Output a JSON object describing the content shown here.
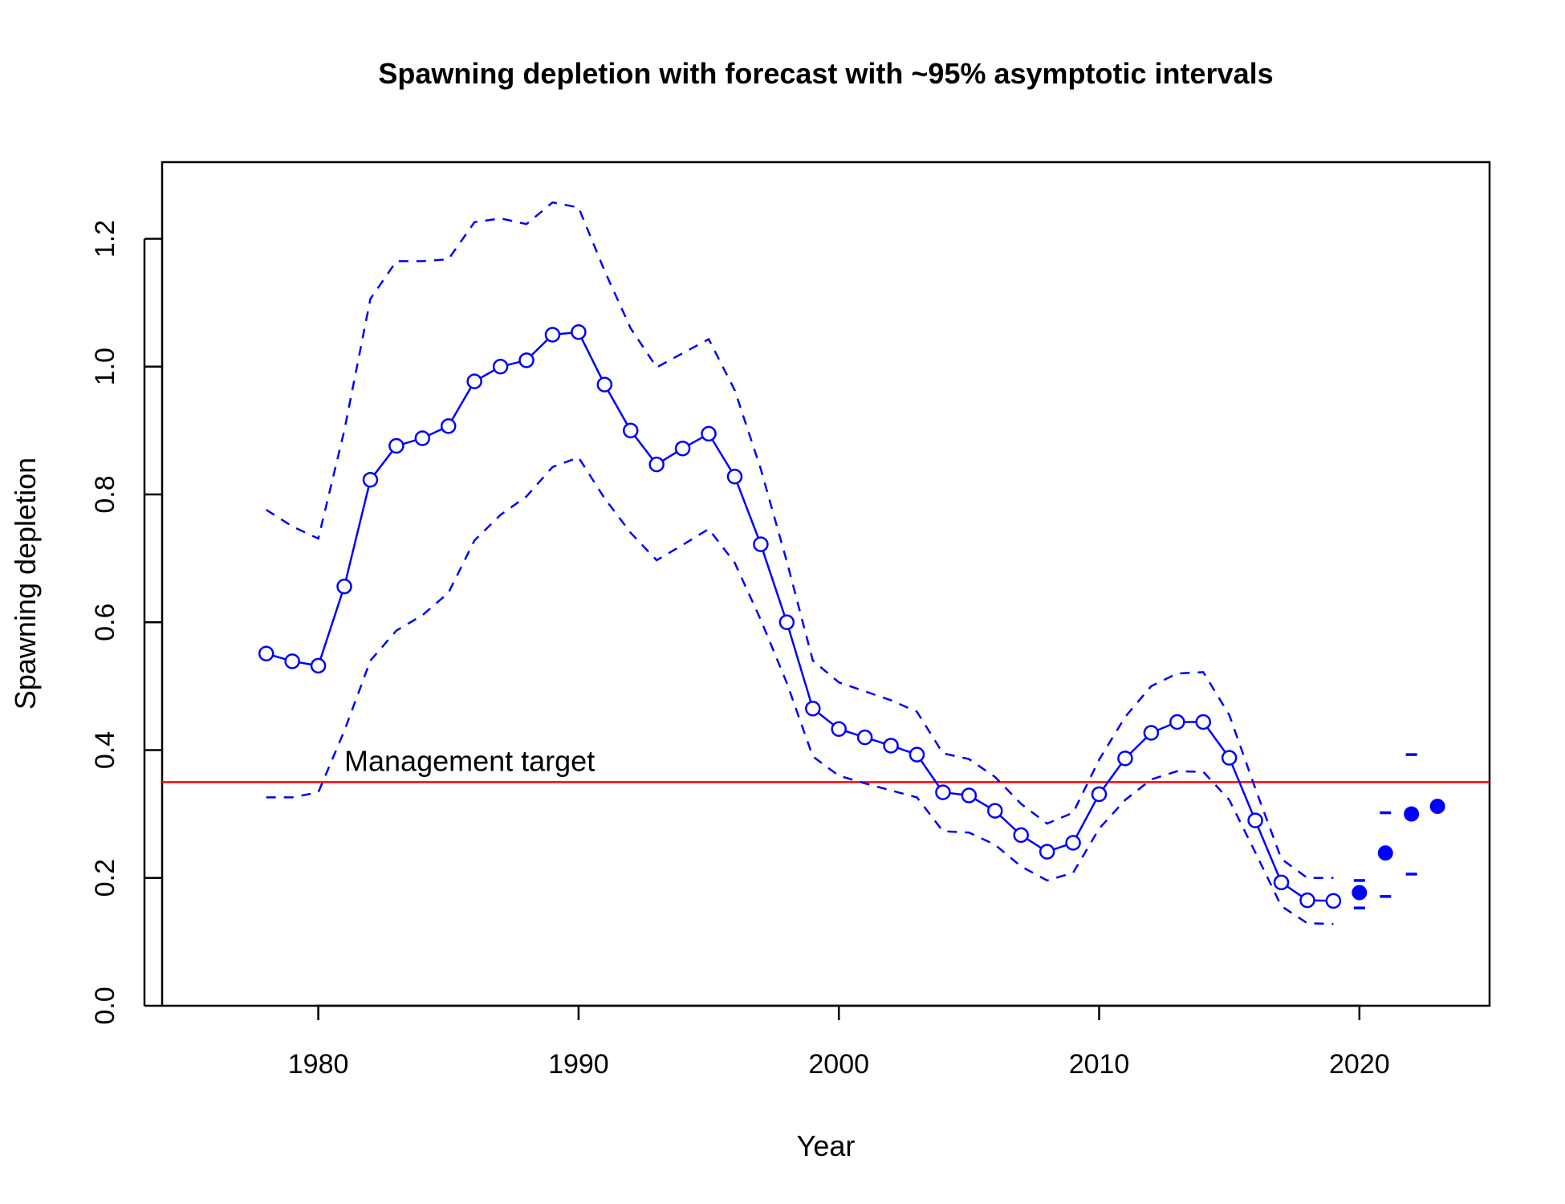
{
  "chart_data": {
    "type": "line",
    "title": "Spawning depletion with forecast with ~95% asymptotic intervals",
    "xlabel": "Year",
    "ylabel": "Spawning depletion",
    "xlim": [
      1974,
      2025
    ],
    "ylim": [
      0,
      1.32
    ],
    "x_ticks": [
      1980,
      1990,
      2000,
      2010,
      2020
    ],
    "y_ticks": [
      0.0,
      0.2,
      0.4,
      0.6,
      0.8,
      1.0,
      1.2
    ],
    "x_tick_labels": [
      "1980",
      "1990",
      "2000",
      "2010",
      "2020"
    ],
    "y_tick_labels": [
      "0.0",
      "0.2",
      "0.4",
      "0.6",
      "0.8",
      "1.0",
      "1.2"
    ],
    "colors": {
      "series": "#0000ff",
      "target": "#ff0000",
      "axis": "#000000"
    },
    "reference_line": {
      "y": 0.35,
      "label": "Management target",
      "label_x": 1981
    },
    "series": [
      {
        "role": "estimate",
        "style": "solid-line-open-circles",
        "x": [
          1978,
          1979,
          1980,
          1981,
          1982,
          1983,
          1984,
          1985,
          1986,
          1987,
          1988,
          1989,
          1990,
          1991,
          1992,
          1993,
          1994,
          1995,
          1996,
          1997,
          1998,
          1999,
          2000,
          2001,
          2002,
          2003,
          2004,
          2005,
          2006,
          2007,
          2008,
          2009,
          2010,
          2011,
          2012,
          2013,
          2014,
          2015,
          2016,
          2017,
          2018,
          2019
        ],
        "values": [
          0.551,
          0.539,
          0.532,
          0.656,
          0.823,
          0.876,
          0.888,
          0.907,
          0.977,
          1.0,
          1.01,
          1.05,
          1.054,
          0.972,
          0.9,
          0.847,
          0.872,
          0.895,
          0.828,
          0.722,
          0.6,
          0.465,
          0.433,
          0.42,
          0.407,
          0.393,
          0.334,
          0.329,
          0.305,
          0.267,
          0.241,
          0.255,
          0.331,
          0.387,
          0.427,
          0.444,
          0.444,
          0.388,
          0.29,
          0.193,
          0.165,
          0.164
        ]
      },
      {
        "role": "upper-interval",
        "style": "dashed",
        "x": [
          1978,
          1979,
          1980,
          1981,
          1982,
          1983,
          1984,
          1985,
          1986,
          1987,
          1988,
          1989,
          1990,
          1991,
          1992,
          1993,
          1994,
          1995,
          1996,
          1997,
          1998,
          1999,
          2000,
          2001,
          2002,
          2003,
          2004,
          2005,
          2006,
          2007,
          2008,
          2009,
          2010,
          2011,
          2012,
          2013,
          2014,
          2015,
          2016,
          2017,
          2018,
          2019
        ],
        "values": [
          0.776,
          0.75,
          0.731,
          0.9,
          1.106,
          1.165,
          1.165,
          1.168,
          1.226,
          1.232,
          1.223,
          1.257,
          1.249,
          1.15,
          1.06,
          0.999,
          1.021,
          1.043,
          0.963,
          0.84,
          0.695,
          0.54,
          0.506,
          0.492,
          0.478,
          0.46,
          0.395,
          0.386,
          0.358,
          0.316,
          0.285,
          0.302,
          0.385,
          0.452,
          0.5,
          0.52,
          0.522,
          0.455,
          0.34,
          0.23,
          0.2,
          0.2
        ]
      },
      {
        "role": "lower-interval",
        "style": "dashed",
        "x": [
          1978,
          1979,
          1980,
          1981,
          1982,
          1983,
          1984,
          1985,
          1986,
          1987,
          1988,
          1989,
          1990,
          1991,
          1992,
          1993,
          1994,
          1995,
          1996,
          1997,
          1998,
          1999,
          2000,
          2001,
          2002,
          2003,
          2004,
          2005,
          2006,
          2007,
          2008,
          2009,
          2010,
          2011,
          2012,
          2013,
          2014,
          2015,
          2016,
          2017,
          2018,
          2019
        ],
        "values": [
          0.326,
          0.326,
          0.334,
          0.43,
          0.54,
          0.587,
          0.611,
          0.646,
          0.728,
          0.768,
          0.797,
          0.843,
          0.858,
          0.794,
          0.74,
          0.697,
          0.721,
          0.746,
          0.693,
          0.604,
          0.505,
          0.39,
          0.36,
          0.348,
          0.337,
          0.326,
          0.273,
          0.271,
          0.252,
          0.218,
          0.196,
          0.208,
          0.277,
          0.322,
          0.354,
          0.367,
          0.366,
          0.322,
          0.24,
          0.156,
          0.129,
          0.128
        ]
      },
      {
        "role": "forecast",
        "style": "filled-points",
        "x": [
          2020,
          2021,
          2022,
          2023
        ],
        "values": [
          0.177,
          0.239,
          0.3,
          0.312
        ]
      },
      {
        "role": "forecast-upper",
        "style": "dash-marks",
        "x": [
          2020,
          2021,
          2022
        ],
        "values": [
          0.196,
          0.302,
          0.393
        ]
      },
      {
        "role": "forecast-lower",
        "style": "dash-marks",
        "x": [
          2020,
          2021,
          2022
        ],
        "values": [
          0.153,
          0.171,
          0.206
        ]
      }
    ],
    "grid": false,
    "legend": "none"
  }
}
